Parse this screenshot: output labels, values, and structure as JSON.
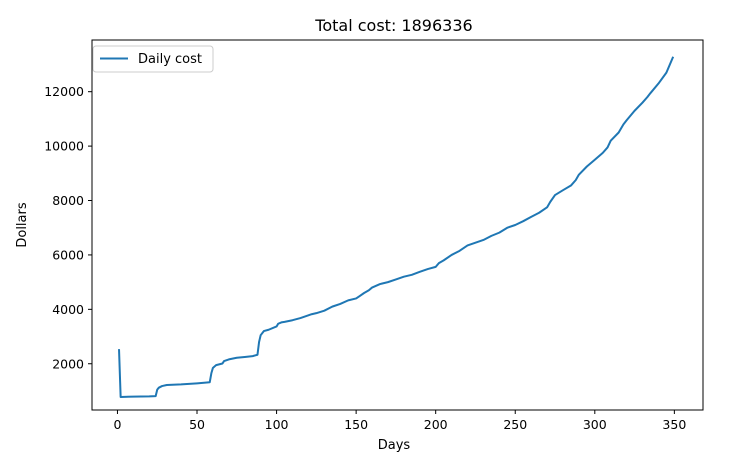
{
  "chart_data": {
    "type": "line",
    "title": "Total cost: 1896336",
    "xlabel": "Days",
    "ylabel": "Dollars",
    "xlim": [
      -16,
      368
    ],
    "ylim": [
      300,
      13900
    ],
    "xticks": [
      0,
      50,
      100,
      150,
      200,
      250,
      300,
      350
    ],
    "yticks": [
      2000,
      4000,
      6000,
      8000,
      10000,
      12000
    ],
    "xtick_labels": [
      "0",
      "50",
      "100",
      "150",
      "200",
      "250",
      "300",
      "350"
    ],
    "ytick_labels": [
      "2000",
      "4000",
      "6000",
      "8000",
      "10000",
      "12000"
    ],
    "grid": false,
    "legend_position": "upper-left",
    "series": [
      {
        "name": "Daily cost",
        "color": "#1f77b4",
        "x": [
          1,
          2,
          10,
          20,
          24,
          25,
          26,
          28,
          31,
          40,
          50,
          58,
          59,
          60,
          62,
          66,
          67,
          70,
          75,
          80,
          85,
          88,
          89,
          90,
          92,
          95,
          100,
          101,
          103,
          105,
          110,
          115,
          120,
          122,
          125,
          130,
          135,
          140,
          145,
          150,
          152,
          155,
          158,
          160,
          165,
          170,
          175,
          180,
          185,
          190,
          195,
          200,
          202,
          205,
          210,
          215,
          220,
          225,
          230,
          235,
          240,
          245,
          250,
          255,
          260,
          265,
          270,
          272,
          275,
          280,
          285,
          288,
          290,
          295,
          300,
          305,
          308,
          310,
          315,
          318,
          320,
          325,
          330,
          333,
          335,
          340,
          345,
          349
        ],
        "y": [
          2500,
          780,
          790,
          800,
          810,
          1050,
          1120,
          1180,
          1220,
          1240,
          1280,
          1320,
          1650,
          1850,
          1950,
          2010,
          2100,
          2160,
          2220,
          2250,
          2280,
          2330,
          2800,
          3050,
          3200,
          3250,
          3370,
          3470,
          3520,
          3540,
          3600,
          3680,
          3780,
          3820,
          3860,
          3950,
          4100,
          4200,
          4330,
          4400,
          4480,
          4600,
          4700,
          4800,
          4930,
          5000,
          5100,
          5200,
          5270,
          5380,
          5480,
          5560,
          5700,
          5800,
          6000,
          6150,
          6350,
          6450,
          6550,
          6700,
          6820,
          7000,
          7100,
          7240,
          7400,
          7550,
          7750,
          7950,
          8200,
          8380,
          8550,
          8750,
          8950,
          9250,
          9500,
          9750,
          9950,
          10200,
          10500,
          10800,
          10950,
          11300,
          11600,
          11800,
          11950,
          12300,
          12700,
          13250
        ]
      }
    ]
  }
}
